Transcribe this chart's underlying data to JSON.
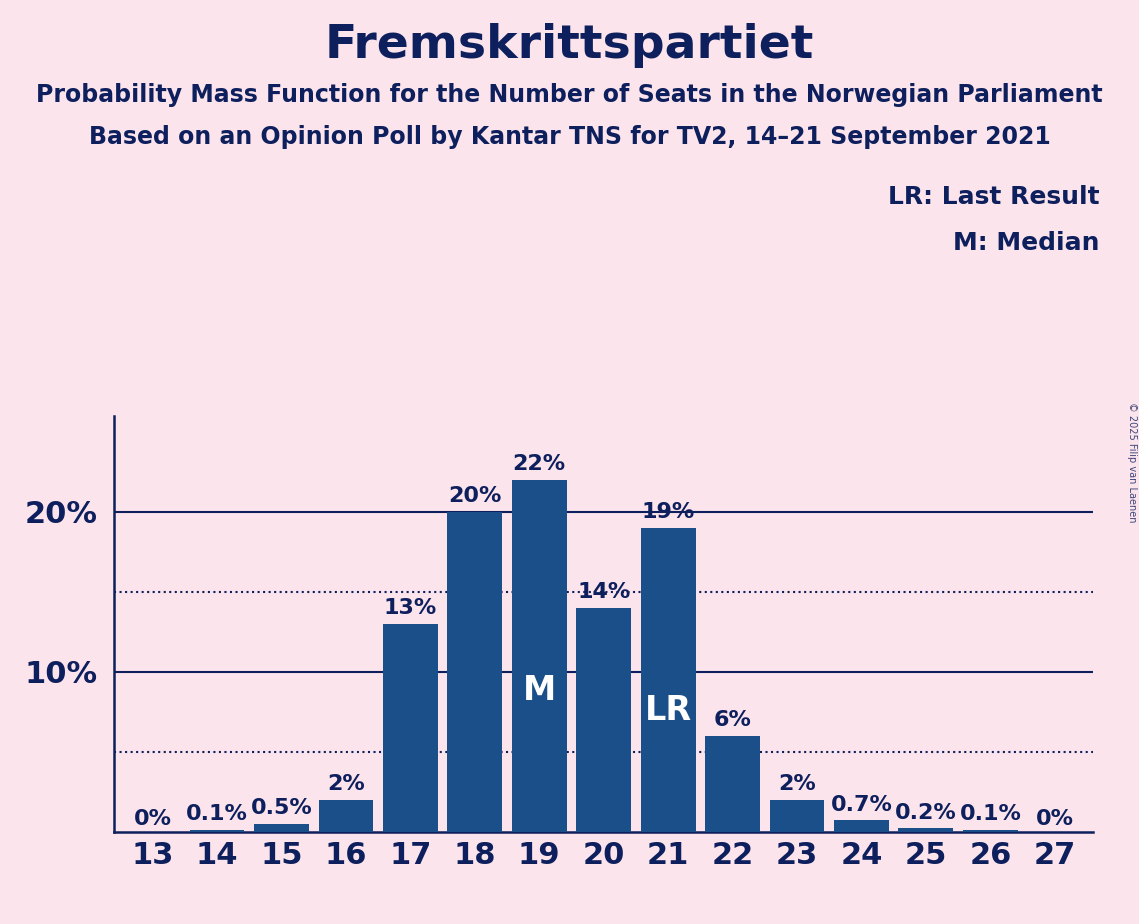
{
  "title": "Fremskrittspartiet",
  "subtitle1": "Probability Mass Function for the Number of Seats in the Norwegian Parliament",
  "subtitle2": "Based on an Opinion Poll by Kantar TNS for TV2, 14–21 September 2021",
  "copyright": "© 2025 Filip van Laenen",
  "categories": [
    13,
    14,
    15,
    16,
    17,
    18,
    19,
    20,
    21,
    22,
    23,
    24,
    25,
    26,
    27
  ],
  "values": [
    0.0,
    0.1,
    0.5,
    2.0,
    13.0,
    20.0,
    22.0,
    14.0,
    19.0,
    6.0,
    2.0,
    0.7,
    0.2,
    0.1,
    0.0
  ],
  "labels": [
    "0%",
    "0.1%",
    "0.5%",
    "2%",
    "13%",
    "20%",
    "22%",
    "14%",
    "19%",
    "6%",
    "2%",
    "0.7%",
    "0.2%",
    "0.1%",
    "0%"
  ],
  "bar_color": "#1a4f8a",
  "background_color": "#fce4ec",
  "text_color": "#0d1f5c",
  "median_seat": 19,
  "last_result_seat": 21,
  "legend_lr": "LR: Last Result",
  "legend_m": "M: Median",
  "solid_gridlines": [
    10.0,
    20.0
  ],
  "dotted_gridlines": [
    5.0,
    15.0
  ],
  "title_fontsize": 34,
  "subtitle_fontsize": 17,
  "tick_fontsize": 22,
  "bar_label_fontsize": 16,
  "inner_label_fontsize": 24,
  "legend_fontsize": 18,
  "ytick_fontsize": 22
}
